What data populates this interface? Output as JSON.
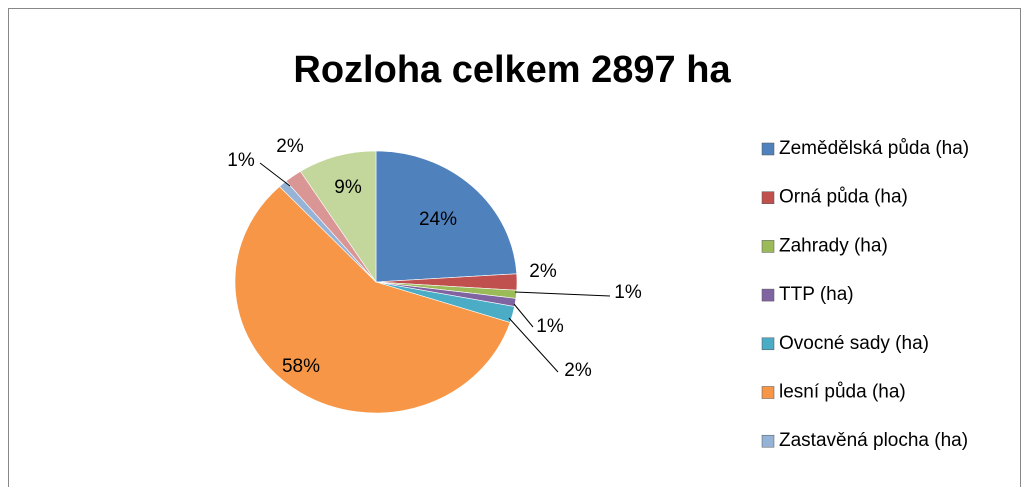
{
  "chart_data": {
    "type": "pie",
    "title": "Rozloha celkem 2897 ha",
    "categories": [
      "Zemědělská půda (ha)",
      "Orná půda (ha)",
      "Zahrady (ha)",
      "TTP (ha)",
      "Ovocné sady (ha)",
      "lesní půda (ha)",
      "Zastavěná plocha (ha)",
      null,
      null
    ],
    "values": [
      24,
      2,
      1,
      1,
      2,
      58,
      1,
      2,
      9
    ],
    "value_labels": [
      "24%",
      "2%",
      "1%",
      "1%",
      "2%",
      "58%",
      "1%",
      "2%",
      "9%"
    ],
    "colors": [
      "#4f81bd",
      "#c0504d",
      "#9bbb59",
      "#8064a2",
      "#4bacc6",
      "#f79646",
      "#95b3d7",
      "#d99694",
      "#c3d69b"
    ],
    "legend": "right"
  }
}
